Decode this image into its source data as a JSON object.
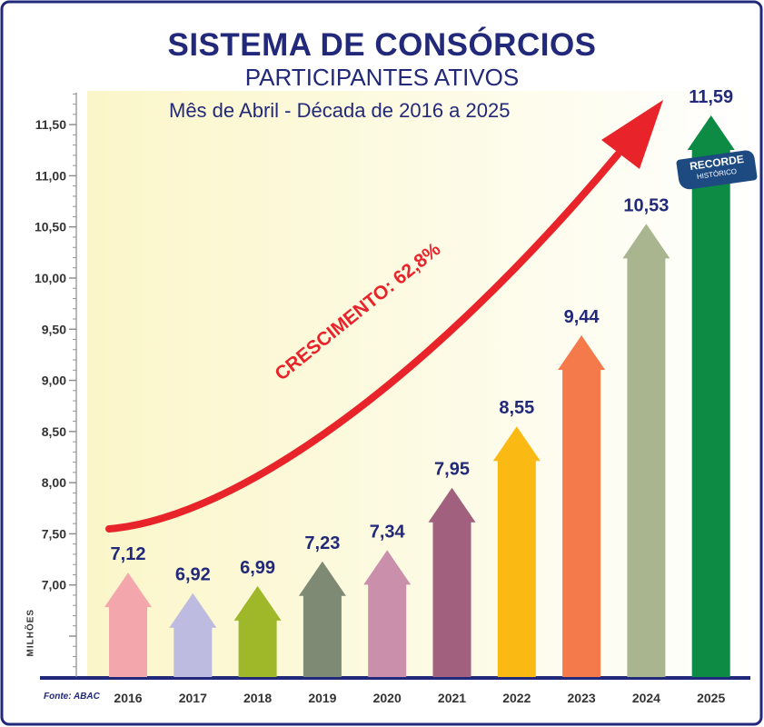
{
  "title": "SISTEMA DE CONSÓRCIOS",
  "subtitle": "PARTICIPANTES ATIVOS",
  "period": "Mês de Abril - Década de 2016 a 2025",
  "growth_label": "CRESCIMENTO: 62,8%",
  "badge": {
    "line1": "RECORDE",
    "line2": "HISTÓRICO"
  },
  "source": "Fonte: ABAC",
  "colors": {
    "title": "#22287a",
    "growth_arrow": "#e8232a",
    "axis": "#22287a",
    "badge": "#1e4a82"
  },
  "chart_data": {
    "type": "bar",
    "title": "SISTEMA DE CONSÓRCIOS",
    "subtitle": "PARTICIPANTES ATIVOS",
    "ylabel": "MILHÕES",
    "xlabel": "",
    "ylim": [
      6.1,
      11.59
    ],
    "ytick_labels": [
      "7,00",
      "7,50",
      "8,00",
      "8,50",
      "9,00",
      "9,50",
      "10,00",
      "10,50",
      "11,00",
      "11,50"
    ],
    "ytick_values": [
      7.0,
      7.5,
      8.0,
      8.5,
      9.0,
      9.5,
      10.0,
      10.5,
      11.0,
      11.5
    ],
    "categories": [
      "2016",
      "2017",
      "2018",
      "2019",
      "2020",
      "2021",
      "2022",
      "2023",
      "2024",
      "2025"
    ],
    "values": [
      7.12,
      6.92,
      6.99,
      7.23,
      7.34,
      7.95,
      8.55,
      9.44,
      10.53,
      11.59
    ],
    "data_labels": [
      "7,12",
      "6,92",
      "6,99",
      "7,23",
      "7,34",
      "7,95",
      "8,55",
      "9,44",
      "10,53",
      "11,59"
    ],
    "bar_colors": [
      "#f4a6ad",
      "#bdbbe0",
      "#9fb829",
      "#7e8a74",
      "#c98fab",
      "#a0607e",
      "#fbb913",
      "#f47a4c",
      "#a8b58f",
      "#0d8a44"
    ],
    "grid": false,
    "legend": "none"
  }
}
